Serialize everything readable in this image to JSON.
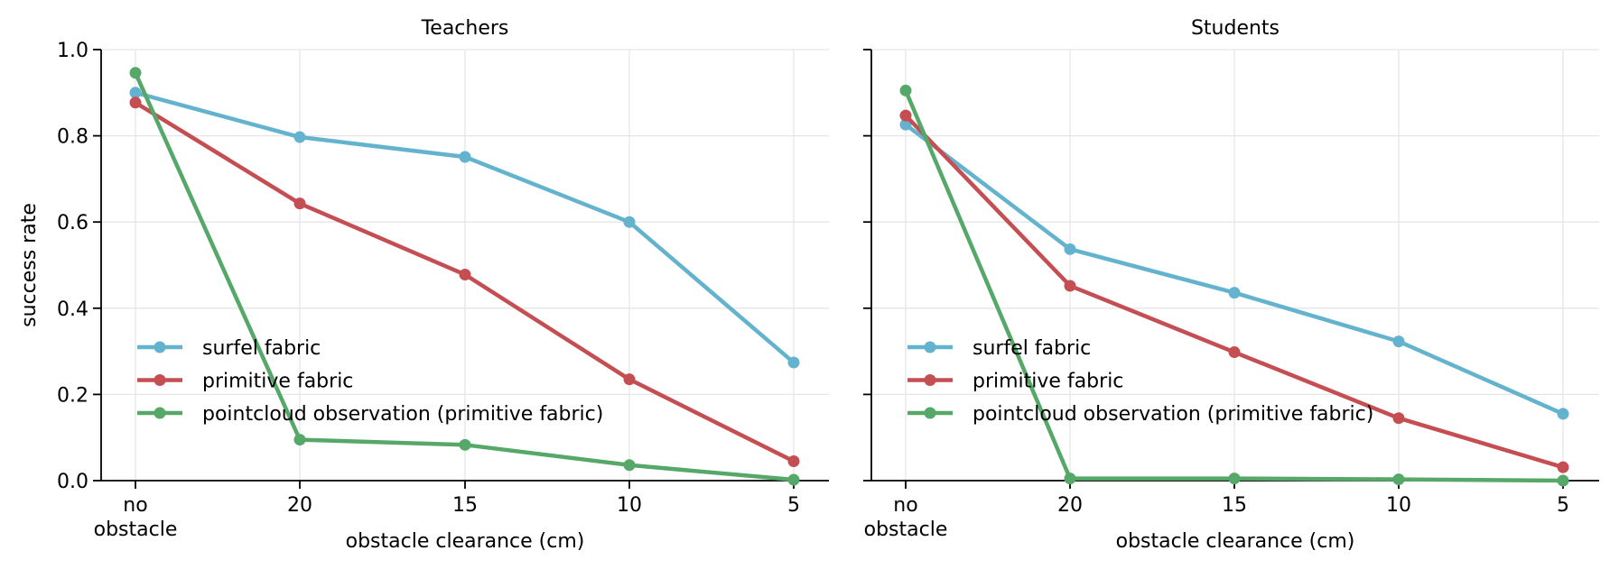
{
  "chart_data": [
    {
      "type": "line",
      "title": "Teachers",
      "xlabel": "obstacle clearance (cm)",
      "ylabel": "success rate",
      "categories": [
        "no\nobstacle",
        "20",
        "15",
        "10",
        "5"
      ],
      "ylim": [
        0,
        1.0
      ],
      "yticks": [
        "0.0",
        "0.2",
        "0.4",
        "0.6",
        "0.8",
        "1.0"
      ],
      "grid": true,
      "legend_position": "lower-left",
      "series": [
        {
          "name": "surfel fabric",
          "color": "#63b3cf",
          "values": [
            0.9,
            0.797,
            0.751,
            0.6,
            0.274
          ]
        },
        {
          "name": "primitive fabric",
          "color": "#c44e52",
          "values": [
            0.877,
            0.643,
            0.478,
            0.235,
            0.045
          ]
        },
        {
          "name": "pointcloud observation (primitive fabric)",
          "color": "#55a868",
          "values": [
            0.946,
            0.095,
            0.083,
            0.036,
            0.002
          ]
        }
      ]
    },
    {
      "type": "line",
      "title": "Students",
      "xlabel": "obstacle clearance (cm)",
      "ylabel": "",
      "categories": [
        "no\nobstacle",
        "20",
        "15",
        "10",
        "5"
      ],
      "ylim": [
        0,
        1.0
      ],
      "yticks": [
        "",
        "",
        "",
        "",
        "",
        ""
      ],
      "grid": true,
      "legend_position": "lower-left",
      "series": [
        {
          "name": "surfel fabric",
          "color": "#63b3cf",
          "values": [
            0.826,
            0.537,
            0.436,
            0.323,
            0.155
          ]
        },
        {
          "name": "primitive fabric",
          "color": "#c44e52",
          "values": [
            0.847,
            0.452,
            0.298,
            0.145,
            0.031
          ]
        },
        {
          "name": "pointcloud observation (primitive fabric)",
          "color": "#55a868",
          "values": [
            0.905,
            0.005,
            0.005,
            0.003,
            0.0
          ]
        }
      ]
    }
  ]
}
